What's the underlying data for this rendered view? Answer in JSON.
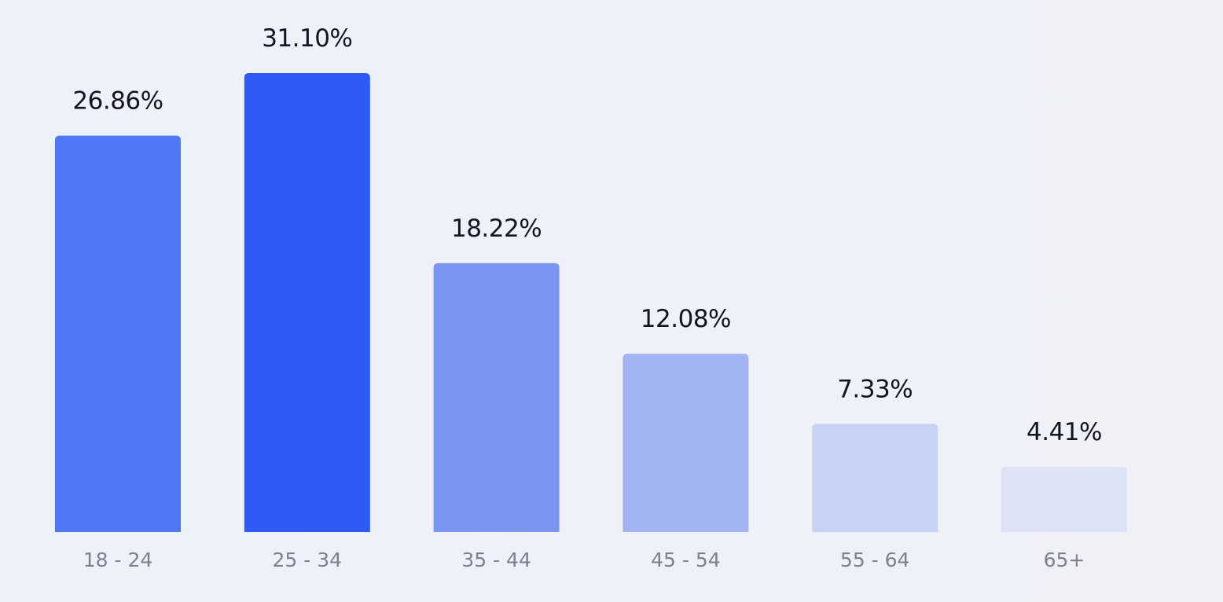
{
  "chart_data": {
    "type": "bar",
    "categories": [
      "18 - 24",
      "25 - 34",
      "35 - 44",
      "45 - 54",
      "55 - 64",
      "65+"
    ],
    "values": [
      26.86,
      31.1,
      18.22,
      12.08,
      7.33,
      4.41
    ],
    "value_labels": [
      "26.86%",
      "31.10%",
      "18.22%",
      "12.08%",
      "7.33%",
      "4.41%"
    ],
    "bar_colors": [
      "#5077f5",
      "#2e5af6",
      "#7b96f1",
      "#a2b4f3",
      "#c8d2f4",
      "#dde2f5"
    ],
    "title": "",
    "xlabel": "",
    "ylabel": "",
    "ylim": [
      0,
      31.1
    ],
    "grid": false,
    "legend": "none"
  }
}
